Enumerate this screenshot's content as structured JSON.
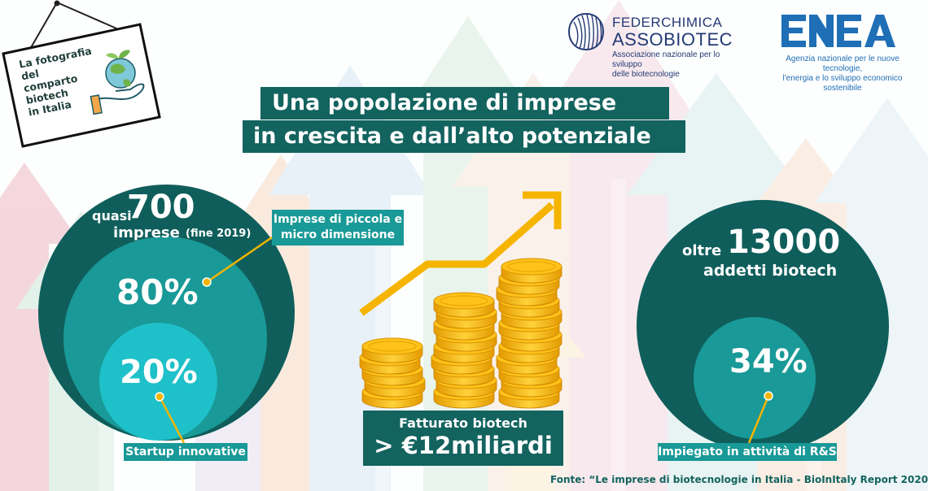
{
  "sign": {
    "line1": "La fotografia",
    "line2": "del comparto",
    "line3": "biotech",
    "line4": "in Italia"
  },
  "logos": {
    "federchimica": {
      "title": "FEDERCHIMICA",
      "name": "ASSOBIOTEC",
      "subtitle_line1": "Associazione nazionale per lo sviluppo",
      "subtitle_line2": "delle biotecnologie"
    },
    "enea": {
      "subtitle_line1": "Agenzia nazionale per le nuove tecnologie,",
      "subtitle_line2": "l'energia e lo sviluppo economico sostenibile"
    }
  },
  "title": {
    "line1": "Una popolazione di imprese",
    "line2": "in crescita e dall’alto potenziale"
  },
  "companies": {
    "prefix": "quasi",
    "count": "700",
    "unit": "imprese",
    "note": "(fine 2019)",
    "small_micro_pct": "80%",
    "small_micro_label_line1": "Imprese di piccola e",
    "small_micro_label_line2": "micro dimensione",
    "startup_pct": "20%",
    "startup_label": "Startup innovative"
  },
  "revenue": {
    "label": "Fatturato biotech",
    "value": "> €12miliardi"
  },
  "employees": {
    "prefix": "oltre",
    "count": "13000",
    "unit": "addetti biotech",
    "rd_pct": "34%",
    "rd_label": "Impiegato in attività di R&S"
  },
  "source": "Fonte: “Le imprese di biotecnologie in Italia - BioInItaly Report 2020”",
  "colors": {
    "dark_teal": "#0f5e5b",
    "mid_teal": "#199997",
    "light_teal": "#1ec0c9",
    "gold": "#f5b400",
    "fed_blue": "#243a75",
    "enea_blue": "#1f6fb6"
  },
  "icons": {
    "sign": "hanging-sign-icon",
    "globe_hand": "globe-in-hand-icon",
    "growth": "growth-arrow-icon",
    "coins": "coin-stacks-icon"
  }
}
